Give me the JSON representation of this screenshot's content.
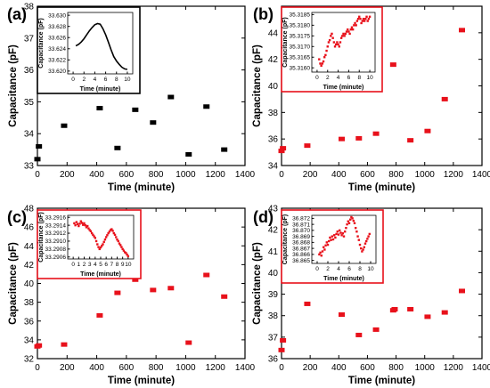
{
  "panels": [
    {
      "label": "(a)",
      "color": "#000000",
      "inset_border": "#000000",
      "chart_data": {
        "type": "scatter",
        "xlabel": "Time (minute)",
        "ylabel": "Capacitance (pF)",
        "xlim": [
          0,
          1400
        ],
        "ylim": [
          33,
          38
        ],
        "xticks": [
          0,
          200,
          400,
          600,
          800,
          1000,
          1200,
          1400
        ],
        "yticks": [
          33,
          34,
          35,
          36,
          37,
          38
        ],
        "x": [
          0,
          10,
          180,
          420,
          540,
          660,
          780,
          900,
          1020,
          1140,
          1260
        ],
        "y": [
          33.2,
          33.6,
          34.25,
          34.8,
          33.55,
          34.75,
          34.35,
          35.15,
          33.35,
          34.85,
          33.5
        ],
        "inset": {
          "xlabel": "Time (minute)",
          "ylabel": "Capacitance (pF)",
          "xlim": [
            -1,
            11
          ],
          "ylim": [
            33.6195,
            33.6305
          ],
          "xticks": [
            0,
            2,
            4,
            6,
            8,
            10
          ],
          "yticks": [
            33.62,
            33.622,
            33.624,
            33.626,
            33.628,
            33.63
          ],
          "ytick_labels": [
            "33.620",
            "33.622",
            "33.624",
            "33.626",
            "33.628",
            "33.630"
          ],
          "style": "line",
          "x": [
            0.5,
            1,
            1.5,
            2,
            2.5,
            3,
            3.5,
            4,
            4.5,
            5,
            5.5,
            6,
            6.5,
            7,
            7.5,
            8,
            8.5,
            9,
            9.5,
            10
          ],
          "y": [
            33.6245,
            33.6248,
            33.6252,
            33.6258,
            33.6265,
            33.6272,
            33.6278,
            33.6283,
            33.6285,
            33.6284,
            33.6276,
            33.6265,
            33.6252,
            33.6238,
            33.6226,
            33.6218,
            33.6212,
            33.6207,
            33.6204,
            33.6203
          ]
        }
      }
    },
    {
      "label": "(b)",
      "color": "#e8111b",
      "inset_border": "#e8111b",
      "chart_data": {
        "type": "scatter",
        "xlabel": "Time (minute)",
        "ylabel": "Capacitance (pF)",
        "xlim": [
          0,
          1400
        ],
        "ylim": [
          34,
          46
        ],
        "xticks": [
          0,
          200,
          400,
          600,
          800,
          1000,
          1200,
          1400
        ],
        "yticks": [
          34,
          36,
          38,
          40,
          42,
          44
        ],
        "x": [
          0,
          10,
          180,
          420,
          540,
          660,
          780,
          900,
          1020,
          1140,
          1260
        ],
        "y": [
          35.1,
          35.3,
          35.5,
          36.0,
          36.05,
          36.4,
          41.6,
          35.9,
          36.6,
          39.0,
          44.2
        ],
        "inset": {
          "xlabel": "Time (minute)",
          "ylabel": "Capacitance (pF)",
          "xlim": [
            -1,
            11
          ],
          "ylim": [
            35.3158,
            35.3186
          ],
          "xticks": [
            0,
            2,
            4,
            6,
            8,
            10
          ],
          "yticks": [
            35.316,
            35.3165,
            35.317,
            35.3175,
            35.318,
            35.3185
          ],
          "ytick_labels": [
            "35.3160",
            "35.3165",
            "35.3170",
            "35.3175",
            "35.3180",
            "35.3185"
          ],
          "style": "dots",
          "x": [
            0.4,
            0.6,
            0.8,
            1.0,
            1.2,
            1.4,
            1.6,
            1.8,
            2.0,
            2.2,
            2.4,
            2.6,
            2.8,
            3.0,
            3.2,
            3.4,
            3.6,
            3.8,
            4.0,
            4.2,
            4.4,
            4.6,
            4.8,
            5.0,
            5.2,
            5.4,
            5.6,
            5.8,
            6.0,
            6.2,
            6.4,
            6.6,
            6.8,
            7.0,
            7.2,
            7.4,
            7.6,
            7.8,
            8.0,
            8.2,
            8.4,
            8.6,
            8.8,
            9.0,
            9.2,
            9.4,
            9.6,
            9.8,
            10.0
          ],
          "y": [
            35.3164,
            35.3162,
            35.3161,
            35.3162,
            35.3163,
            35.3165,
            35.3166,
            35.3168,
            35.317,
            35.3172,
            35.3173,
            35.3175,
            35.3176,
            35.3174,
            35.3172,
            35.317,
            35.3171,
            35.3172,
            35.3171,
            35.317,
            35.3172,
            35.3174,
            35.3175,
            35.3176,
            35.3175,
            35.3176,
            35.3177,
            35.3178,
            35.3177,
            35.3176,
            35.3178,
            35.3179,
            35.3178,
            35.318,
            35.3181,
            35.318,
            35.3182,
            35.3183,
            35.3184,
            35.3183,
            35.3181,
            35.3182,
            35.3183,
            35.3182,
            35.3183,
            35.3184,
            35.3182,
            35.3183,
            35.3184
          ]
        }
      }
    },
    {
      "label": "(c)",
      "color": "#e8111b",
      "inset_border": "#e8111b",
      "chart_data": {
        "type": "scatter",
        "xlabel": "Time (minute)",
        "ylabel": "Capacitance (pF)",
        "xlim": [
          0,
          1400
        ],
        "ylim": [
          32,
          48
        ],
        "xticks": [
          0,
          200,
          400,
          600,
          800,
          1000,
          1200,
          1400
        ],
        "yticks": [
          32,
          34,
          36,
          38,
          40,
          42,
          44,
          46,
          48
        ],
        "x": [
          0,
          10,
          180,
          420,
          540,
          660,
          780,
          900,
          1020,
          1140,
          1260
        ],
        "y": [
          33.3,
          33.4,
          33.5,
          36.6,
          39.0,
          40.4,
          39.3,
          39.5,
          33.7,
          40.9,
          38.6
        ],
        "inset": {
          "xlabel": "Time (minute)",
          "ylabel": "Capacitance (pF)",
          "xlim": [
            -1,
            11
          ],
          "ylim": [
            33.29055,
            33.29165
          ],
          "xticks": [
            0,
            1,
            2,
            3,
            4,
            5,
            6,
            7,
            8,
            9,
            10
          ],
          "yticks": [
            33.2906,
            33.2908,
            33.291,
            33.2912,
            33.2914,
            33.2916
          ],
          "ytick_labels": [
            "33.2906",
            "33.2908",
            "33.2910",
            "33.2912",
            "33.2914",
            "33.2916"
          ],
          "style": "dots",
          "x": [
            0.2,
            0.4,
            0.6,
            0.8,
            1.0,
            1.2,
            1.4,
            1.6,
            1.8,
            2.0,
            2.2,
            2.4,
            2.6,
            2.8,
            3.0,
            3.2,
            3.4,
            3.6,
            3.8,
            4.0,
            4.2,
            4.4,
            4.6,
            4.8,
            5.0,
            5.2,
            5.4,
            5.6,
            5.8,
            6.0,
            6.2,
            6.4,
            6.6,
            6.8,
            7.0,
            7.2,
            7.4,
            7.6,
            7.8,
            8.0,
            8.2,
            8.4,
            8.6,
            8.8,
            9.0,
            9.2,
            9.4,
            9.6,
            9.8,
            10.0
          ],
          "y": [
            33.29145,
            33.2914,
            33.29148,
            33.29143,
            33.29138,
            33.29144,
            33.2915,
            33.29146,
            33.29141,
            33.29145,
            33.2914,
            33.29135,
            33.29138,
            33.29132,
            33.29128,
            33.29125,
            33.2912,
            33.29116,
            33.29112,
            33.29108,
            33.291,
            33.29092,
            33.29085,
            33.2908,
            33.29084,
            33.29088,
            33.29092,
            33.29098,
            33.29104,
            33.2911,
            33.29115,
            33.2912,
            33.29124,
            33.29128,
            33.2913,
            33.29126,
            33.2912,
            33.29116,
            33.2911,
            33.29104,
            33.291,
            33.29094,
            33.2909,
            33.29085,
            33.2908,
            33.29076,
            33.29072,
            33.2907,
            33.29066,
            33.29062
          ]
        }
      }
    },
    {
      "label": "(d)",
      "color": "#e8111b",
      "inset_border": "#e8111b",
      "chart_data": {
        "type": "scatter",
        "xlabel": "Time (minute)",
        "ylabel": "Capacitance (pF)",
        "xlim": [
          0,
          1400
        ],
        "ylim": [
          36,
          43
        ],
        "xticks": [
          0,
          200,
          400,
          600,
          800,
          1000,
          1200,
          1400
        ],
        "yticks": [
          36,
          37,
          38,
          39,
          40,
          41,
          42,
          43
        ],
        "x": [
          0,
          10,
          180,
          420,
          540,
          660,
          780,
          790,
          900,
          1020,
          1140,
          1260
        ],
        "y": [
          36.4,
          36.85,
          38.55,
          38.05,
          37.1,
          37.35,
          38.25,
          38.3,
          38.3,
          37.95,
          38.15,
          39.15
        ],
        "inset": {
          "xlabel": "Time (minute)",
          "ylabel": "Capacitance (pF)",
          "xlim": [
            -1,
            11
          ],
          "ylim": [
            36.8645,
            36.8725
          ],
          "xticks": [
            0,
            2,
            4,
            6,
            8,
            10
          ],
          "yticks": [
            36.865,
            36.866,
            36.867,
            36.868,
            36.869,
            36.87,
            36.871,
            36.872
          ],
          "ytick_labels": [
            "36.865",
            "36.866",
            "36.867",
            "36.868",
            "36.869",
            "36.870",
            "36.871",
            "36.872"
          ],
          "style": "dots",
          "x": [
            0.4,
            0.6,
            0.8,
            1.0,
            1.2,
            1.4,
            1.6,
            1.8,
            2.0,
            2.2,
            2.4,
            2.6,
            2.8,
            3.0,
            3.2,
            3.4,
            3.6,
            3.8,
            4.0,
            4.2,
            4.4,
            4.6,
            4.8,
            5.0,
            5.2,
            5.4,
            5.6,
            5.8,
            6.0,
            6.2,
            6.4,
            6.6,
            6.8,
            7.0,
            7.2,
            7.4,
            7.6,
            7.8,
            8.0,
            8.2,
            8.4,
            8.6,
            8.8,
            9.0,
            9.2,
            9.4,
            9.6,
            9.8
          ],
          "y": [
            36.866,
            36.8663,
            36.8658,
            36.8665,
            36.8672,
            36.8668,
            36.8675,
            36.868,
            36.8676,
            36.8682,
            36.8688,
            36.8684,
            36.869,
            36.8685,
            36.8692,
            36.8688,
            36.8694,
            36.8698,
            36.8693,
            36.87,
            36.8696,
            36.8692,
            36.8695,
            36.869,
            36.8698,
            36.8704,
            36.871,
            36.8715,
            36.8712,
            36.8718,
            36.8722,
            36.872,
            36.8716,
            36.8712,
            36.8704,
            36.8698,
            36.869,
            36.8684,
            36.8676,
            36.867,
            36.8665,
            36.8668,
            36.8672,
            36.8678,
            36.8682,
            36.8686,
            36.869,
            36.8694
          ]
        }
      }
    }
  ]
}
